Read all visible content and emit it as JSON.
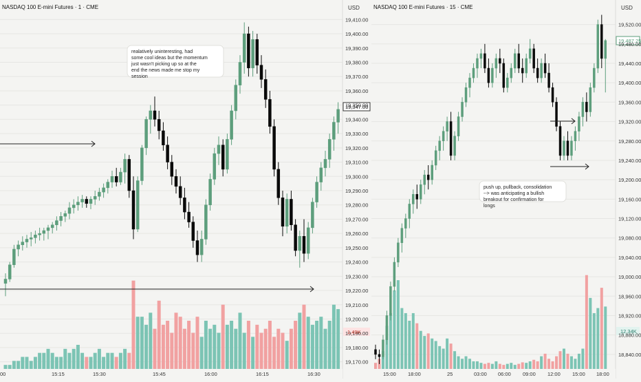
{
  "colors": {
    "up": "#5d9e7c",
    "down": "#0a0a0a",
    "vol_up": "#7cc4b4",
    "vol_down": "#f1a1a1",
    "grid": "#e6e6e3",
    "background": "#f4f4f2"
  },
  "chart_data": [
    {
      "type": "candlestick",
      "title": "NASDAQ 100 E-mini Futures · 1 · CME",
      "currency": "USD",
      "y_ticks": [
        "19,410.00",
        "19,400.00",
        "19,390.00",
        "19,380.00",
        "19,370.00",
        "19,360.00",
        "19,350.00",
        "19,340.00",
        "19,330.00",
        "19,320.00",
        "19,310.00",
        "19,300.00",
        "19,290.00",
        "19,280.00",
        "19,270.00",
        "19,260.00",
        "19,250.00",
        "19,240.00",
        "19,230.00",
        "19,220.00",
        "19,210.00",
        "19,200.00",
        "19,190.00",
        "19,180.00",
        "19,170.00"
      ],
      "ylim": [
        19165,
        19415
      ],
      "x_ticks": [
        "00",
        "15:15",
        "15:30",
        "15:45",
        "16:00",
        "16:15",
        "16:30"
      ],
      "last_price": "19,347.00",
      "volume_label": "1.49K",
      "annotation": "realatively uninteresting, had some cool ideas but the momentum just wasn't picking up so at the end the news made me stop my session",
      "arrows": [
        "horizontal arrow at 19,320",
        "horizontal arrow at 19,220"
      ],
      "candles": [
        [
          19225,
          19232,
          19216,
          19228
        ],
        [
          19228,
          19240,
          19226,
          19238
        ],
        [
          19238,
          19252,
          19236,
          19249
        ],
        [
          19249,
          19255,
          19244,
          19252
        ],
        [
          19252,
          19258,
          19248,
          19254
        ],
        [
          19254,
          19259,
          19250,
          19256
        ],
        [
          19256,
          19261,
          19251,
          19257
        ],
        [
          19257,
          19262,
          19253,
          19259
        ],
        [
          19259,
          19264,
          19255,
          19260
        ],
        [
          19260,
          19264,
          19255,
          19262
        ],
        [
          19262,
          19266,
          19256,
          19264
        ],
        [
          19264,
          19268,
          19260,
          19266
        ],
        [
          19266,
          19272,
          19262,
          19269
        ],
        [
          19269,
          19275,
          19265,
          19272
        ],
        [
          19272,
          19276,
          19268,
          19274
        ],
        [
          19274,
          19282,
          19270,
          19278
        ],
        [
          19278,
          19284,
          19274,
          19280
        ],
        [
          19280,
          19286,
          19276,
          19282
        ],
        [
          19282,
          19287,
          19278,
          19284
        ],
        [
          19284,
          19286,
          19278,
          19281
        ],
        [
          19281,
          19286,
          19277,
          19284
        ],
        [
          19284,
          19290,
          19280,
          19286
        ],
        [
          19286,
          19292,
          19283,
          19289
        ],
        [
          19289,
          19295,
          19285,
          19292
        ],
        [
          19292,
          19298,
          19288,
          19296
        ],
        [
          19296,
          19304,
          19292,
          19300
        ],
        [
          19300,
          19306,
          19293,
          19296
        ],
        [
          19296,
          19306,
          19294,
          19303
        ],
        [
          19303,
          19316,
          19295,
          19312
        ],
        [
          19312,
          19315,
          19285,
          19290
        ],
        [
          19290,
          19300,
          19256,
          19263
        ],
        [
          19263,
          19300,
          19261,
          19297
        ],
        [
          19297,
          19322,
          19294,
          19320
        ],
        [
          19320,
          19342,
          19315,
          19340
        ],
        [
          19340,
          19350,
          19330,
          19346
        ],
        [
          19346,
          19356,
          19335,
          19340
        ],
        [
          19340,
          19346,
          19326,
          19332
        ],
        [
          19332,
          19338,
          19318,
          19322
        ],
        [
          19322,
          19328,
          19305,
          19310
        ],
        [
          19310,
          19315,
          19294,
          19300
        ],
        [
          19300,
          19305,
          19288,
          19293
        ],
        [
          19293,
          19300,
          19280,
          19285
        ],
        [
          19285,
          19292,
          19270,
          19275
        ],
        [
          19275,
          19282,
          19264,
          19268
        ],
        [
          19268,
          19272,
          19250,
          19255
        ],
        [
          19255,
          19262,
          19240,
          19245
        ],
        [
          19245,
          19262,
          19240,
          19256
        ],
        [
          19256,
          19284,
          19252,
          19280
        ],
        [
          19280,
          19302,
          19276,
          19298
        ],
        [
          19298,
          19320,
          19294,
          19316
        ],
        [
          19316,
          19328,
          19308,
          19322
        ],
        [
          19322,
          19326,
          19300,
          19305
        ],
        [
          19305,
          19330,
          19302,
          19326
        ],
        [
          19326,
          19350,
          19322,
          19346
        ],
        [
          19346,
          19368,
          19340,
          19364
        ],
        [
          19364,
          19385,
          19358,
          19380
        ],
        [
          19380,
          19408,
          19372,
          19400
        ],
        [
          19400,
          19405,
          19370,
          19376
        ],
        [
          19376,
          19402,
          19370,
          19396
        ],
        [
          19396,
          19400,
          19372,
          19378
        ],
        [
          19378,
          19385,
          19362,
          19368
        ],
        [
          19368,
          19375,
          19348,
          19354
        ],
        [
          19354,
          19360,
          19330,
          19335
        ],
        [
          19335,
          19340,
          19300,
          19305
        ],
        [
          19305,
          19310,
          19280,
          19285
        ],
        [
          19285,
          19290,
          19258,
          19265
        ],
        [
          19265,
          19288,
          19260,
          19284
        ],
        [
          19284,
          19290,
          19262,
          19266
        ],
        [
          19266,
          19270,
          19244,
          19248
        ],
        [
          19248,
          19262,
          19236,
          19258
        ],
        [
          19258,
          19270,
          19240,
          19246
        ],
        [
          19246,
          19268,
          19242,
          19264
        ],
        [
          19264,
          19285,
          19260,
          19282
        ],
        [
          19282,
          19300,
          19278,
          19296
        ],
        [
          19296,
          19310,
          19290,
          19306
        ],
        [
          19306,
          19318,
          19300,
          19312
        ],
        [
          19312,
          19330,
          19306,
          19326
        ],
        [
          19326,
          19342,
          19318,
          19338
        ],
        [
          19338,
          19352,
          19330,
          19347
        ]
      ],
      "volumes": [
        0.1,
        0.1,
        0.2,
        0.2,
        0.3,
        0.3,
        0.2,
        0.3,
        0.4,
        0.4,
        0.5,
        0.4,
        0.3,
        0.3,
        0.5,
        0.4,
        0.5,
        0.6,
        0.4,
        0.3,
        0.3,
        0.4,
        0.5,
        0.3,
        0.4,
        0.4,
        0.3,
        0.4,
        0.5,
        0.4,
        2.2,
        1.3,
        1.3,
        1.1,
        1.4,
        1.0,
        1.7,
        1.1,
        1.2,
        0.9,
        1.4,
        1.3,
        1.0,
        1.2,
        0.9,
        1.3,
        0.8,
        1.2,
        1.0,
        1.1,
        0.9,
        1.6,
        1.1,
        1.2,
        1.0,
        1.4,
        0.9,
        1.2,
        0.8,
        1.1,
        0.9,
        1.0,
        1.2,
        0.8,
        1.0,
        0.9,
        0.7,
        1.0,
        1.2,
        1.4,
        1.6,
        1.3,
        1.1,
        1.2,
        1.3,
        1.0,
        1.2,
        1.6,
        1.49
      ]
    },
    {
      "type": "candlestick",
      "title": "NASDAQ 100 E-mini Futures · 15 · CME",
      "currency": "USD",
      "y_ticks": [
        "19,520.00",
        "19,480.00",
        "19,440.00",
        "19,400.00",
        "19,360.00",
        "19,320.00",
        "19,280.00",
        "19,240.00",
        "19,200.00",
        "19,160.00",
        "19,120.00",
        "19,080.00",
        "19,040.00",
        "19,000.00",
        "18,960.00",
        "18,920.00",
        "18,880.00",
        "18,840.00"
      ],
      "ylim": [
        18810,
        19545
      ],
      "x_ticks": [
        "15:00",
        "18:00",
        "25",
        "03:00",
        "06:00",
        "09:00",
        "12:00",
        "15:00",
        "18:00"
      ],
      "last_price": "19,487.25",
      "volume_label": "12.34K",
      "annotation": "push up, pullback, consolidation --> was anticipating a bullish breakout for confirmation for longs",
      "arrows": [
        "horizontal arrow at 19,320",
        "horizontal arrow at 19,230"
      ],
      "candles": [
        [
          18850,
          18860,
          18830,
          18840
        ],
        [
          18840,
          18850,
          18820,
          18835
        ],
        [
          18835,
          18880,
          18830,
          18870
        ],
        [
          18870,
          18930,
          18860,
          18920
        ],
        [
          18920,
          18990,
          18910,
          18980
        ],
        [
          18980,
          19040,
          18970,
          19030
        ],
        [
          19030,
          19080,
          19020,
          19070
        ],
        [
          19070,
          19110,
          19050,
          19100
        ],
        [
          19100,
          19130,
          19080,
          19120
        ],
        [
          19120,
          19160,
          19100,
          19150
        ],
        [
          19150,
          19180,
          19130,
          19170
        ],
        [
          19170,
          19190,
          19140,
          19160
        ],
        [
          19160,
          19200,
          19150,
          19190
        ],
        [
          19190,
          19220,
          19170,
          19210
        ],
        [
          19210,
          19230,
          19180,
          19200
        ],
        [
          19200,
          19240,
          19190,
          19230
        ],
        [
          19230,
          19270,
          19220,
          19260
        ],
        [
          19260,
          19290,
          19240,
          19280
        ],
        [
          19280,
          19310,
          19260,
          19300
        ],
        [
          19300,
          19330,
          19280,
          19320
        ],
        [
          19320,
          19340,
          19240,
          19250
        ],
        [
          19250,
          19300,
          19240,
          19290
        ],
        [
          19290,
          19340,
          19280,
          19330
        ],
        [
          19330,
          19370,
          19320,
          19360
        ],
        [
          19360,
          19400,
          19350,
          19390
        ],
        [
          19390,
          19420,
          19370,
          19410
        ],
        [
          19410,
          19440,
          19400,
          19430
        ],
        [
          19430,
          19460,
          19410,
          19450
        ],
        [
          19450,
          19470,
          19430,
          19460
        ],
        [
          19460,
          19480,
          19420,
          19430
        ],
        [
          19430,
          19450,
          19390,
          19400
        ],
        [
          19400,
          19440,
          19390,
          19430
        ],
        [
          19430,
          19460,
          19410,
          19450
        ],
        [
          19450,
          19470,
          19420,
          19440
        ],
        [
          19440,
          19450,
          19380,
          19390
        ],
        [
          19390,
          19420,
          19380,
          19410
        ],
        [
          19410,
          19440,
          19400,
          19430
        ],
        [
          19430,
          19470,
          19420,
          19460
        ],
        [
          19460,
          19480,
          19420,
          19430
        ],
        [
          19430,
          19450,
          19400,
          19420
        ],
        [
          19420,
          19460,
          19410,
          19450
        ],
        [
          19450,
          19490,
          19440,
          19470
        ],
        [
          19470,
          19480,
          19420,
          19430
        ],
        [
          19430,
          19450,
          19400,
          19410
        ],
        [
          19410,
          19450,
          19400,
          19440
        ],
        [
          19440,
          19460,
          19410,
          19420
        ],
        [
          19420,
          19440,
          19380,
          19390
        ],
        [
          19390,
          19400,
          19350,
          19360
        ],
        [
          19360,
          19370,
          19300,
          19310
        ],
        [
          19310,
          19320,
          19240,
          19250
        ],
        [
          19250,
          19290,
          19240,
          19280
        ],
        [
          19280,
          19300,
          19240,
          19250
        ],
        [
          19250,
          19290,
          19240,
          19280
        ],
        [
          19280,
          19310,
          19260,
          19300
        ],
        [
          19300,
          19340,
          19280,
          19330
        ],
        [
          19330,
          19370,
          19310,
          19360
        ],
        [
          19360,
          19380,
          19320,
          19340
        ],
        [
          19340,
          19400,
          19330,
          19390
        ],
        [
          19390,
          19440,
          19380,
          19430
        ],
        [
          19430,
          19530,
          19420,
          19520
        ],
        [
          19520,
          19540,
          19430,
          19450
        ],
        [
          19450,
          19490,
          19380,
          19487
        ]
      ],
      "volumes": [
        1.2,
        2.0,
        3.5,
        8.5,
        11.0,
        15.5,
        17.5,
        12.0,
        11.0,
        9.5,
        11.0,
        9.0,
        7.5,
        6.5,
        7.0,
        6.0,
        5.5,
        4.5,
        4.0,
        6.0,
        5.0,
        3.5,
        2.5,
        2.0,
        2.5,
        2.0,
        1.5,
        1.5,
        1.2,
        1.0,
        1.2,
        1.0,
        1.5,
        1.0,
        0.8,
        1.0,
        1.2,
        0.8,
        1.0,
        1.3,
        1.2,
        1.5,
        1.8,
        1.5,
        2.5,
        3.0,
        2.0,
        1.5,
        2.5,
        3.5,
        4.0,
        3.0,
        2.5,
        2.0,
        3.0,
        4.0,
        18.5,
        14.0,
        11.0,
        12.0,
        16.0,
        12.3
      ]
    }
  ]
}
